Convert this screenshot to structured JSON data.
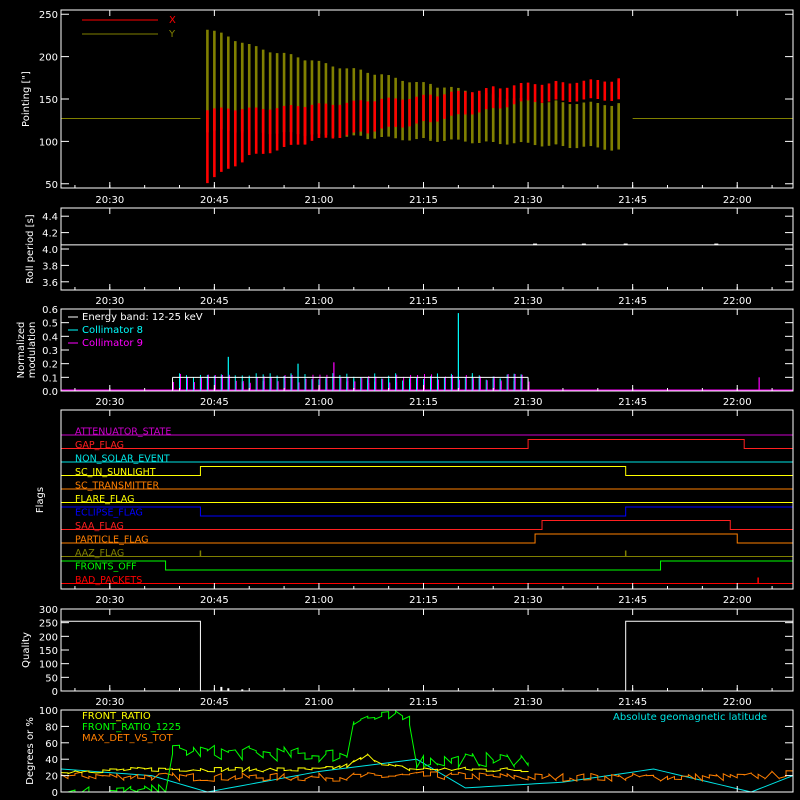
{
  "time_ticks": [
    "20:30",
    "20:45",
    "21:00",
    "21:15",
    "21:30",
    "21:45",
    "22:00"
  ],
  "panels": {
    "pointing": {
      "ylabel": "Pointing [\"]",
      "yticks": [
        50,
        100,
        150,
        200,
        250
      ],
      "legend": [
        {
          "name": "X",
          "color": "#ff0000"
        },
        {
          "name": "Y",
          "color": "#808000"
        }
      ]
    },
    "roll": {
      "ylabel": "Roll period [s]",
      "yticks": [
        "3.6",
        "3.8",
        "4.0",
        "4.2",
        "4.4"
      ]
    },
    "modulation": {
      "ylabel_line1": "Normalized",
      "ylabel_line2": "modulation",
      "yticks": [
        "0.0",
        "0.1",
        "0.2",
        "0.3",
        "0.4",
        "0.5",
        "0.6"
      ],
      "legend": [
        {
          "name": "Energy band: 12-25 keV",
          "color": "#ffffff"
        },
        {
          "name": "Collimator 8",
          "color": "#00ffff"
        },
        {
          "name": "Collimator 9",
          "color": "#ff00ff"
        }
      ]
    },
    "flags": {
      "ylabel": "Flags",
      "items": [
        {
          "name": "ATTENUATOR_STATE",
          "color": "#cc00cc"
        },
        {
          "name": "GAP_FLAG",
          "color": "#ff2020"
        },
        {
          "name": "NON_SOLAR_EVENT",
          "color": "#00e5e5"
        },
        {
          "name": "SC_IN_SUNLIGHT",
          "color": "#ffff00"
        },
        {
          "name": "SC_TRANSMITTER",
          "color": "#ff7f00"
        },
        {
          "name": "FLARE_FLAG",
          "color": "#ffff00"
        },
        {
          "name": "ECLIPSE_FLAG",
          "color": "#0000ff"
        },
        {
          "name": "SAA_FLAG",
          "color": "#ff2020"
        },
        {
          "name": "PARTICLE_FLAG",
          "color": "#ff7f00"
        },
        {
          "name": "AAZ_FLAG",
          "color": "#808000"
        },
        {
          "name": "FRONTS_OFF",
          "color": "#00ff00"
        },
        {
          "name": "BAD_PACKETS",
          "color": "#ff0000"
        }
      ]
    },
    "quality": {
      "ylabel": "Quality",
      "yticks": [
        0,
        50,
        100,
        150,
        200,
        250,
        300
      ]
    },
    "ratios": {
      "ylabel": "Degrees or %",
      "yticks": [
        0,
        20,
        40,
        60,
        80,
        100
      ],
      "legend": [
        {
          "name": "FRONT_RATIO",
          "color": "#ffff00"
        },
        {
          "name": "FRONT_RATIO_1225",
          "color": "#00ff00"
        },
        {
          "name": "MAX_DET_VS_TOT",
          "color": "#ff7f00"
        }
      ],
      "right_label": "Absolute geomagnetic latitude",
      "right_label_color": "#00e5e5"
    }
  },
  "chart_data": [
    {
      "type": "line",
      "ylabel": "Pointing [\"]",
      "ylim": [
        45,
        255
      ],
      "xlim": [
        "20:23",
        "22:08"
      ],
      "series": [
        {
          "name": "X",
          "color": "#ff0000",
          "x": [
            "20:23",
            "20:43",
            "20:44",
            "20:50",
            "21:00",
            "21:15",
            "21:30",
            "21:44",
            "21:45",
            "22:08"
          ],
          "min": [
            127,
            127,
            50,
            80,
            100,
            120,
            145,
            148,
            127,
            127
          ],
          "max": [
            127,
            127,
            140,
            140,
            145,
            155,
            170,
            175,
            127,
            127
          ]
        },
        {
          "name": "Y",
          "color": "#808000",
          "x": [
            "20:23",
            "20:43",
            "20:44",
            "20:50",
            "21:00",
            "21:15",
            "21:30",
            "21:44",
            "21:45",
            "22:08"
          ],
          "min": [
            127,
            127,
            110,
            110,
            105,
            100,
            95,
            88,
            127,
            127
          ],
          "max": [
            127,
            127,
            235,
            215,
            195,
            170,
            150,
            145,
            127,
            127
          ]
        }
      ]
    },
    {
      "type": "line",
      "ylabel": "Roll period [s]",
      "ylim": [
        3.5,
        4.5
      ],
      "xlim": [
        "20:23",
        "22:08"
      ],
      "series": [
        {
          "x": [
            "20:23",
            "22:08"
          ],
          "y": [
            4.05,
            4.05
          ]
        }
      ]
    },
    {
      "type": "bar",
      "ylabel": "Normalized modulation",
      "ylim": [
        0,
        0.6
      ],
      "xlim": [
        "20:23",
        "22:08"
      ],
      "series": [
        {
          "name": "Collimator 8",
          "color": "#00ffff",
          "x_range": [
            "20:39",
            "21:30"
          ],
          "typical": 0.1,
          "spikes": [
            {
              "x": "21:20",
              "y": 0.57
            },
            {
              "x": "20:47",
              "y": 0.25
            },
            {
              "x": "20:57",
              "y": 0.2
            }
          ]
        },
        {
          "name": "Collimator 9",
          "color": "#ff00ff",
          "x_range": [
            "20:39",
            "21:30"
          ],
          "typical": 0.09,
          "spikes": [
            {
              "x": "21:02",
              "y": 0.21
            },
            {
              "x": "22:03",
              "y": 0.1
            }
          ]
        }
      ]
    },
    {
      "type": "line",
      "ylabel": "Flags",
      "xlim": [
        "20:23",
        "22:08"
      ],
      "series": [
        {
          "name": "ATTENUATOR_STATE",
          "steps": [
            [
              "20:23",
              0
            ]
          ]
        },
        {
          "name": "GAP_FLAG",
          "steps": [
            [
              "20:23",
              0
            ],
            [
              "21:30",
              1
            ],
            [
              "22:01",
              0
            ]
          ]
        },
        {
          "name": "NON_SOLAR_EVENT",
          "steps": [
            [
              "20:23",
              0
            ]
          ]
        },
        {
          "name": "SC_IN_SUNLIGHT",
          "steps": [
            [
              "20:23",
              0
            ],
            [
              "20:43",
              1
            ],
            [
              "21:44",
              0
            ]
          ]
        },
        {
          "name": "SC_TRANSMITTER",
          "steps": [
            [
              "20:23",
              0
            ]
          ]
        },
        {
          "name": "FLARE_FLAG",
          "steps": [
            [
              "20:23",
              0
            ]
          ]
        },
        {
          "name": "ECLIPSE_FLAG",
          "steps": [
            [
              "20:23",
              1
            ],
            [
              "20:43",
              0
            ],
            [
              "21:44",
              1
            ]
          ]
        },
        {
          "name": "SAA_FLAG",
          "steps": [
            [
              "20:23",
              0
            ],
            [
              "21:32",
              1
            ],
            [
              "21:59",
              0
            ]
          ]
        },
        {
          "name": "PARTICLE_FLAG",
          "steps": [
            [
              "20:23",
              0
            ],
            [
              "21:31",
              1
            ],
            [
              "22:00",
              0
            ]
          ]
        },
        {
          "name": "AAZ_FLAG",
          "pulses": [
            "20:43",
            "21:44"
          ]
        },
        {
          "name": "FRONTS_OFF",
          "steps": [
            [
              "20:23",
              1
            ],
            [
              "20:38",
              0
            ],
            [
              "21:49",
              1
            ]
          ]
        },
        {
          "name": "BAD_PACKETS",
          "pulses": [
            "22:03"
          ]
        }
      ]
    },
    {
      "type": "line",
      "ylabel": "Quality",
      "ylim": [
        0,
        300
      ],
      "xlim": [
        "20:23",
        "22:08"
      ],
      "series": [
        {
          "x": [
            "20:23",
            "20:43",
            "20:43",
            "21:44",
            "21:44",
            "22:08"
          ],
          "y": [
            255,
            255,
            0,
            0,
            255,
            255
          ]
        }
      ]
    },
    {
      "type": "line",
      "ylabel": "Degrees or %",
      "ylim": [
        0,
        100
      ],
      "xlim": [
        "20:23",
        "22:08"
      ],
      "series": [
        {
          "name": "FRONT_RATIO",
          "color": "#ffff00",
          "x": [
            "20:23",
            "20:38",
            "21:00",
            "21:04",
            "21:07",
            "21:10",
            "21:13",
            "21:30"
          ],
          "y": [
            25,
            28,
            27,
            32,
            44,
            32,
            28,
            27
          ]
        },
        {
          "name": "FRONT_RATIO_1225",
          "color": "#00ff00",
          "x": [
            "20:23",
            "20:38",
            "20:39",
            "21:00",
            "21:04",
            "21:05",
            "21:13",
            "21:14",
            "21:30"
          ],
          "y": [
            0,
            0,
            50,
            45,
            45,
            90,
            90,
            38,
            40
          ]
        },
        {
          "name": "MAX_DET_VS_TOT",
          "color": "#ff7f00",
          "x": [
            "20:23",
            "20:45",
            "21:00",
            "21:15",
            "21:30",
            "21:44",
            "22:00",
            "22:08"
          ],
          "y": [
            20,
            18,
            18,
            20,
            18,
            18,
            18,
            22
          ]
        },
        {
          "name": "Absolute geomagnetic latitude",
          "color": "#00e5e5",
          "x": [
            "20:23",
            "20:36",
            "20:44",
            "21:00",
            "21:14",
            "21:21",
            "21:35",
            "21:48",
            "22:02",
            "22:08"
          ],
          "y": [
            28,
            20,
            0,
            25,
            40,
            5,
            12,
            28,
            0,
            20
          ]
        }
      ]
    }
  ]
}
